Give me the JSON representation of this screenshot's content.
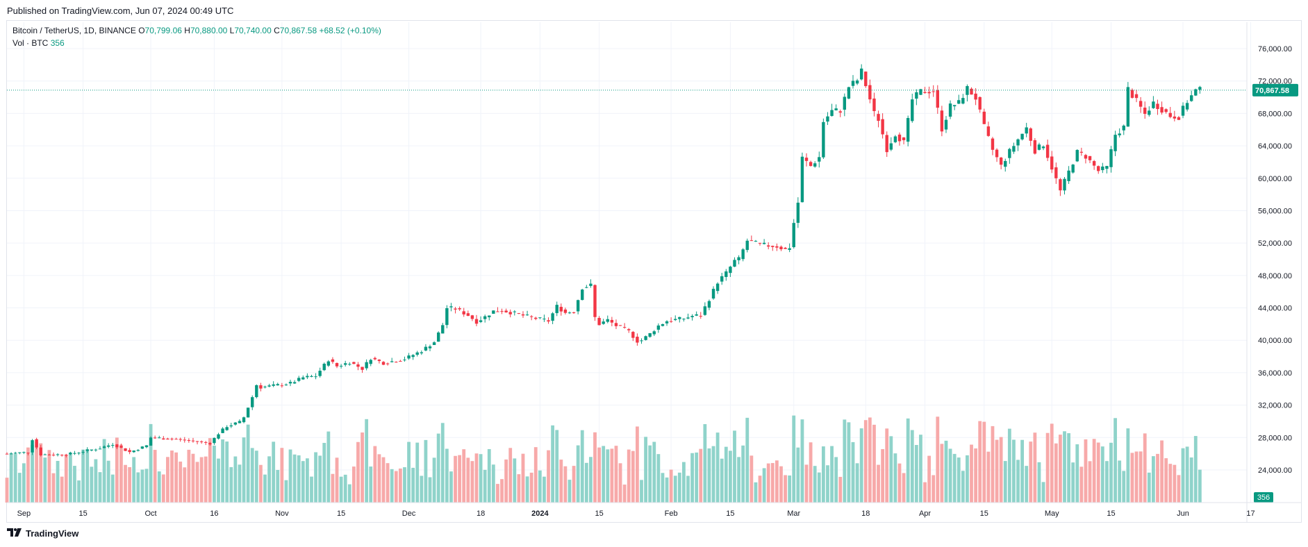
{
  "header": {
    "published": "Published on TradingView.com, Jun 07, 2024 00:49 UTC"
  },
  "legend": {
    "symbol": "Bitcoin / TetherUS, 1D, BINANCE",
    "open_label": "O",
    "open": "70,799.06",
    "high_label": "H",
    "high": "70,880.00",
    "low_label": "L",
    "low": "70,740.00",
    "close_label": "C",
    "close": "70,867.58",
    "change": "+68.52 (+0.10%)",
    "vol_label": "Vol · BTC",
    "vol_value": "356"
  },
  "footer": {
    "brand": "TradingView"
  },
  "colors": {
    "up": "#089981",
    "down": "#f23645",
    "vol_up": "#8fd3ca",
    "vol_down": "#f7a9a9",
    "grid": "#f0f3fa",
    "axis_text": "#131722"
  },
  "chart_data": {
    "type": "candlestick",
    "symbol": "Bitcoin / TetherUS",
    "interval": "1D",
    "exchange": "BINANCE",
    "y_axis": {
      "ticks": [
        24000,
        28000,
        32000,
        36000,
        40000,
        44000,
        48000,
        52000,
        56000,
        60000,
        64000,
        68000,
        72000,
        76000
      ],
      "tick_labels": [
        "24,000.00",
        "28,000.00",
        "32,000.00",
        "36,000.00",
        "40,000.00",
        "44,000.00",
        "48,000.00",
        "52,000.00",
        "56,000.00",
        "60,000.00",
        "64,000.00",
        "68,000.00",
        "72,000.00",
        "76,000.00"
      ],
      "range": [
        18000,
        78000
      ]
    },
    "x_axis": {
      "tick_labels": [
        "Sep",
        "15",
        "Oct",
        "16",
        "Nov",
        "15",
        "Dec",
        "18",
        "2024",
        "15",
        "Feb",
        "15",
        "Mar",
        "18",
        "Apr",
        "15",
        "May",
        "15",
        "Jun",
        "17"
      ],
      "tick_days": [
        4,
        18,
        34,
        49,
        65,
        79,
        95,
        112,
        126,
        140,
        157,
        171,
        186,
        203,
        217,
        231,
        247,
        261,
        278,
        294
      ],
      "range_days": [
        0,
        295
      ]
    },
    "last_price": 70867.58,
    "last_price_label": "70,867.58",
    "volume_last_label": "356",
    "volume_max": 30000,
    "ohlc_keypoints": [
      [
        0,
        26000
      ],
      [
        5,
        26200
      ],
      [
        6,
        27800
      ],
      [
        7,
        26800
      ],
      [
        8,
        25900
      ],
      [
        14,
        25900
      ],
      [
        18,
        26300
      ],
      [
        22,
        26700
      ],
      [
        25,
        27200
      ],
      [
        29,
        26200
      ],
      [
        33,
        27000
      ],
      [
        34,
        28000
      ],
      [
        40,
        27800
      ],
      [
        45,
        27500
      ],
      [
        48,
        27300
      ],
      [
        50,
        28500
      ],
      [
        52,
        29400
      ],
      [
        55,
        29900
      ],
      [
        56,
        30500
      ],
      [
        58,
        33000
      ],
      [
        59,
        34500
      ],
      [
        60,
        34200
      ],
      [
        63,
        34400
      ],
      [
        67,
        34700
      ],
      [
        70,
        35400
      ],
      [
        73,
        35600
      ],
      [
        76,
        37600
      ],
      [
        78,
        36800
      ],
      [
        81,
        37300
      ],
      [
        84,
        36500
      ],
      [
        86,
        37800
      ],
      [
        89,
        37200
      ],
      [
        94,
        37700
      ],
      [
        98,
        38700
      ],
      [
        101,
        39800
      ],
      [
        103,
        41900
      ],
      [
        104,
        44000
      ],
      [
        106,
        43900
      ],
      [
        109,
        43100
      ],
      [
        111,
        42300
      ],
      [
        113,
        42900
      ],
      [
        115,
        43600
      ],
      [
        117,
        43700
      ],
      [
        121,
        43200
      ],
      [
        124,
        42800
      ],
      [
        126,
        42600
      ],
      [
        128,
        42400
      ],
      [
        130,
        44200
      ],
      [
        132,
        43400
      ],
      [
        134,
        43600
      ],
      [
        136,
        46500
      ],
      [
        138,
        46800
      ],
      [
        139,
        42800
      ],
      [
        140,
        42000
      ],
      [
        142,
        42500
      ],
      [
        144,
        41800
      ],
      [
        147,
        41100
      ],
      [
        149,
        39900
      ],
      [
        150,
        40000
      ],
      [
        152,
        40800
      ],
      [
        154,
        41800
      ],
      [
        156,
        42400
      ],
      [
        160,
        42700
      ],
      [
        162,
        43000
      ],
      [
        164,
        43100
      ],
      [
        166,
        45100
      ],
      [
        168,
        47200
      ],
      [
        170,
        48300
      ],
      [
        172,
        49800
      ],
      [
        173,
        50000
      ],
      [
        175,
        52300
      ],
      [
        178,
        51800
      ],
      [
        182,
        51600
      ],
      [
        184,
        51200
      ],
      [
        185,
        51500
      ],
      [
        186,
        54500
      ],
      [
        187,
        57000
      ],
      [
        188,
        62500
      ],
      [
        190,
        61500
      ],
      [
        192,
        62600
      ],
      [
        193,
        67000
      ],
      [
        195,
        68300
      ],
      [
        197,
        68400
      ],
      [
        199,
        71300
      ],
      [
        201,
        72100
      ],
      [
        202,
        73200
      ],
      [
        203,
        71500
      ],
      [
        205,
        68000
      ],
      [
        206,
        67300
      ],
      [
        208,
        63600
      ],
      [
        210,
        65500
      ],
      [
        212,
        64400
      ],
      [
        214,
        69700
      ],
      [
        216,
        70700
      ],
      [
        219,
        70800
      ],
      [
        221,
        66100
      ],
      [
        223,
        68900
      ],
      [
        225,
        69300
      ],
      [
        227,
        71100
      ],
      [
        229,
        69900
      ],
      [
        231,
        66300
      ],
      [
        233,
        63500
      ],
      [
        235,
        61500
      ],
      [
        237,
        63300
      ],
      [
        239,
        64800
      ],
      [
        241,
        66200
      ],
      [
        243,
        63400
      ],
      [
        245,
        64200
      ],
      [
        247,
        61300
      ],
      [
        249,
        58400
      ],
      [
        251,
        60800
      ],
      [
        253,
        63200
      ],
      [
        255,
        62700
      ],
      [
        258,
        60900
      ],
      [
        260,
        61300
      ],
      [
        262,
        65400
      ],
      [
        264,
        66300
      ],
      [
        265,
        71000
      ],
      [
        267,
        69500
      ],
      [
        269,
        67900
      ],
      [
        271,
        69300
      ],
      [
        273,
        68500
      ],
      [
        275,
        67700
      ],
      [
        277,
        67600
      ],
      [
        279,
        69500
      ],
      [
        281,
        70800
      ],
      [
        282,
        70867.58
      ]
    ]
  }
}
